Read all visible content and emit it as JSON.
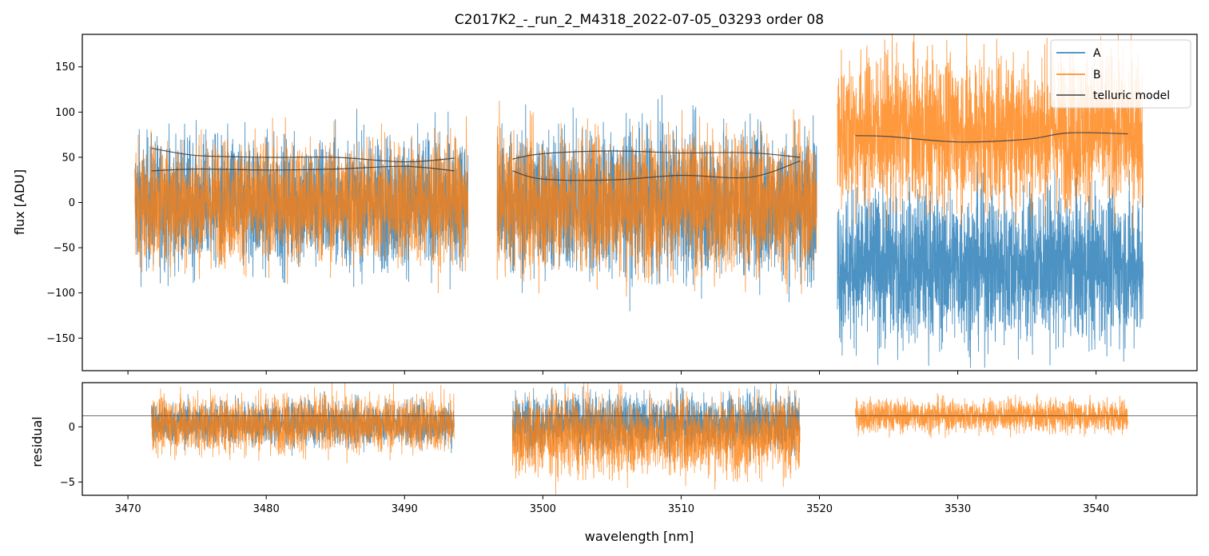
{
  "chart_data": [
    {
      "type": "line",
      "panel": "main",
      "title": "C2017K2_-_run_2_M4318_2022-07-05_03293  order 08",
      "xlabel": "",
      "ylabel": "flux [ADU]",
      "xlim": [
        3466.7,
        3547.3
      ],
      "ylim": [
        -186,
        186
      ],
      "yticks": [
        -150,
        -100,
        -50,
        0,
        50,
        100,
        150
      ],
      "ytick_labels": [
        "−150",
        "−100",
        "−50",
        "0",
        "50",
        "100",
        "150"
      ],
      "xticks": [
        3470,
        3480,
        3490,
        3500,
        3510,
        3520,
        3530,
        3540
      ],
      "xtick_labels_visible": false,
      "legend": {
        "position": "top-right",
        "entries": [
          "A",
          "B",
          "telluric model"
        ]
      },
      "segments": [
        {
          "x_range": [
            3470.5,
            3494.6
          ],
          "A_center": 0,
          "A_spread": 80,
          "B_center": 0,
          "B_spread": 75
        },
        {
          "x_range": [
            3496.7,
            3519.8
          ],
          "A_center": 0,
          "A_spread": 90,
          "B_center": 0,
          "B_spread": 85
        },
        {
          "x_range": [
            3521.3,
            3543.4
          ],
          "A_center": -70,
          "A_spread": 95,
          "B_center": 80,
          "B_spread": 95
        }
      ],
      "series": [
        {
          "name": "A",
          "color": "#1f77b4"
        },
        {
          "name": "B",
          "color": "#ff7f0e"
        },
        {
          "name": "telluric model",
          "color": "#404040",
          "curves": [
            {
              "x": [
                3471.7,
                3475,
                3480,
                3485,
                3490,
                3493.6
              ],
              "y": [
                60,
                52,
                50,
                50,
                45,
                49
              ]
            },
            {
              "x": [
                3471.7,
                3475,
                3480,
                3485,
                3490,
                3493.6
              ],
              "y": [
                35,
                37,
                36,
                37,
                40,
                35
              ]
            },
            {
              "x": [
                3497.8,
                3500,
                3505,
                3510,
                3515,
                3518.6
              ],
              "y": [
                48,
                54,
                57,
                55,
                55,
                50
              ]
            },
            {
              "x": [
                3497.8,
                3500,
                3505,
                3510,
                3515,
                3518.6
              ],
              "y": [
                35,
                26,
                25,
                30,
                28,
                46
              ]
            },
            {
              "x": [
                3522.6,
                3525,
                3530,
                3535,
                3538,
                3542.3
              ],
              "y": [
                74,
                73,
                67,
                70,
                77,
                76
              ]
            }
          ]
        }
      ]
    },
    {
      "type": "line",
      "panel": "residual",
      "title": "",
      "xlabel": "wavelength [nm]",
      "ylabel": "residual",
      "xlim": [
        3466.7,
        3547.3
      ],
      "ylim": [
        -6.2,
        4.0
      ],
      "yticks": [
        -5,
        0
      ],
      "ytick_labels": [
        "−5",
        "0"
      ],
      "xticks": [
        3470,
        3480,
        3490,
        3500,
        3510,
        3520,
        3530,
        3540
      ],
      "xtick_labels": [
        "3470",
        "3480",
        "3490",
        "3500",
        "3510",
        "3520",
        "3530",
        "3540"
      ],
      "hline_y": 1.0,
      "segments": [
        {
          "x_range": [
            3471.7,
            3493.6
          ],
          "A_center": 0.3,
          "A_spread": 2.2,
          "B_center": 0.3,
          "B_spread": 3.0
        },
        {
          "x_range": [
            3497.8,
            3518.6
          ],
          "A_center": 0.3,
          "A_spread": 3.0,
          "B_center": -0.8,
          "B_spread": 4.0
        },
        {
          "x_range": [
            3522.6,
            3542.3
          ],
          "A_center": null,
          "A_spread": 0,
          "B_center": 1.0,
          "B_spread": 1.7
        }
      ],
      "series": [
        {
          "name": "A",
          "color": "#1f77b4"
        },
        {
          "name": "B",
          "color": "#ff7f0e"
        }
      ]
    }
  ]
}
